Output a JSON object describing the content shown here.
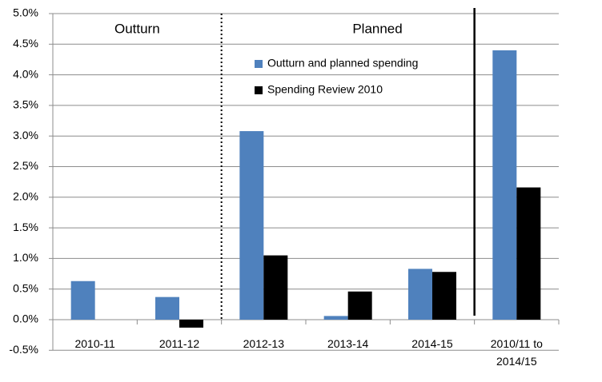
{
  "chart_data": {
    "type": "bar",
    "annotations": [
      "Outturn",
      "Planned"
    ],
    "categories": [
      "2010-11",
      "2011-12",
      "2012-13",
      "2013-14",
      "2014-15",
      "2010/11 to 2014/15"
    ],
    "series": [
      {
        "name": "Outturn and planned spending",
        "color": "#4f81bd",
        "values": [
          0.63,
          0.37,
          3.08,
          0.06,
          0.83,
          4.4
        ]
      },
      {
        "name": "Spending Review 2010",
        "color": "#000000",
        "values": [
          null,
          -0.13,
          1.05,
          0.46,
          0.78,
          2.16
        ]
      }
    ],
    "ylim": [
      -0.5,
      5.0
    ],
    "yticks": [
      {
        "value": -0.5,
        "label": "-0.5%"
      },
      {
        "value": 0.0,
        "label": "0.0%"
      },
      {
        "value": 0.5,
        "label": "0.5%"
      },
      {
        "value": 1.0,
        "label": "1.0%"
      },
      {
        "value": 1.5,
        "label": "1.5%"
      },
      {
        "value": 2.0,
        "label": "2.0%"
      },
      {
        "value": 2.5,
        "label": "2.5%"
      },
      {
        "value": 3.0,
        "label": "3.0%"
      },
      {
        "value": 3.5,
        "label": "3.5%"
      },
      {
        "value": 4.0,
        "label": "4.0%"
      },
      {
        "value": 4.5,
        "label": "4.5%"
      },
      {
        "value": 5.0,
        "label": "5.0%"
      }
    ],
    "grid": true,
    "legend": "top-center"
  }
}
